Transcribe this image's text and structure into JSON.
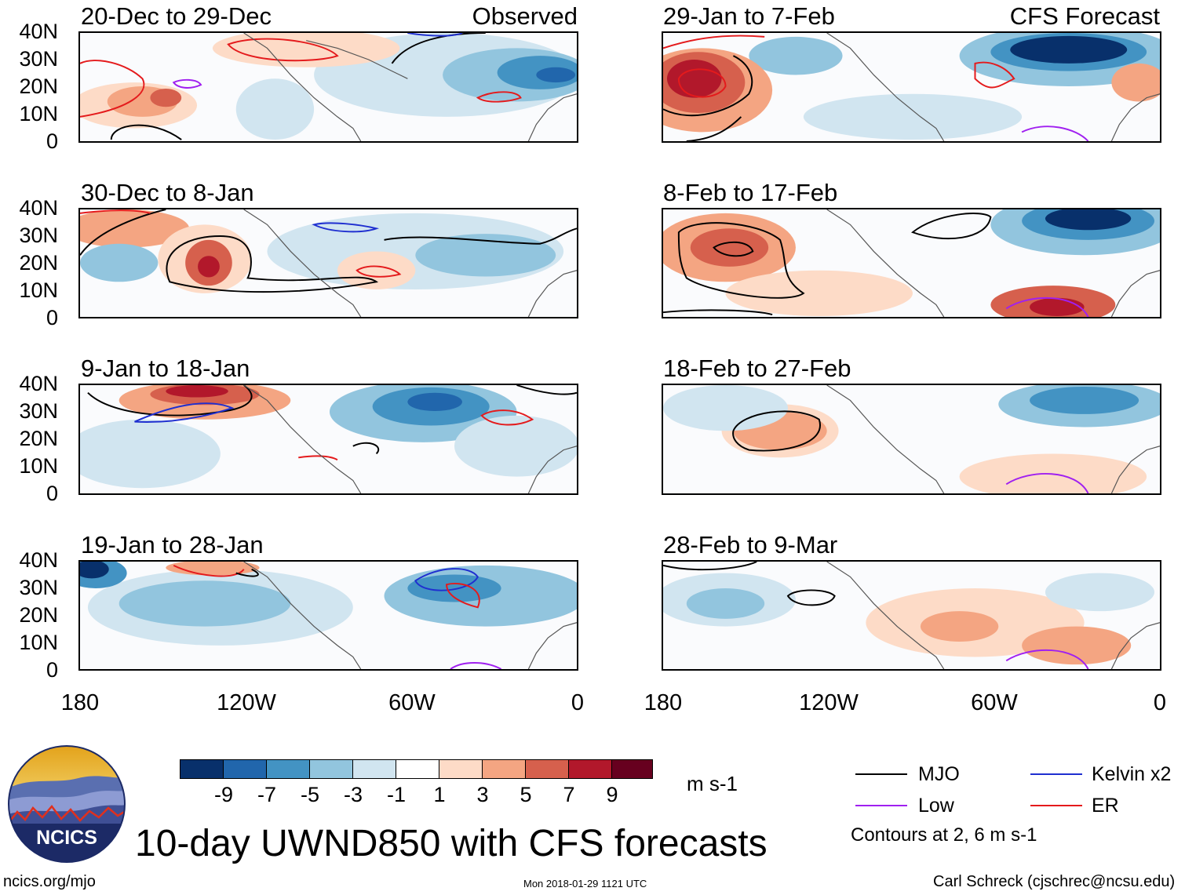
{
  "figure": {
    "title": "10-day UWND850 with CFS forecasts",
    "units": "m s-1",
    "source_link": "ncics.org/mjo",
    "timestamp": "Mon 2018-01-29 1121 UTC",
    "author": "Carl Schreck (cjschrec@ncsu.edu)",
    "logo_text": "NCICS"
  },
  "column_labels": {
    "left": "Observed",
    "right": "CFS Forecast"
  },
  "lat_ticks": [
    "40N",
    "30N",
    "20N",
    "10N",
    "0"
  ],
  "lon_ticks": [
    "180",
    "120W",
    "60W",
    "0"
  ],
  "panels": [
    {
      "period": "20-Dec to 29-Dec",
      "kind": "Observed"
    },
    {
      "period": "30-Dec to 8-Jan",
      "kind": "Observed"
    },
    {
      "period": "9-Jan to 18-Jan",
      "kind": "Observed"
    },
    {
      "period": "19-Jan to 28-Jan",
      "kind": "Observed"
    },
    {
      "period": "29-Jan to 7-Feb",
      "kind": "CFS Forecast"
    },
    {
      "period": "8-Feb to 17-Feb",
      "kind": "CFS Forecast"
    },
    {
      "period": "18-Feb to 27-Feb",
      "kind": "CFS Forecast"
    },
    {
      "period": "28-Feb to 9-Mar",
      "kind": "CFS Forecast"
    }
  ],
  "colorbar": {
    "colors": [
      "#08306b",
      "#2166ac",
      "#4393c3",
      "#92c5de",
      "#d1e5f0",
      "#ffffff",
      "#fddbc7",
      "#f4a582",
      "#d6604d",
      "#b2182b",
      "#67001f"
    ],
    "labels": [
      "-9",
      "-7",
      "-5",
      "-3",
      "-1",
      "1",
      "3",
      "5",
      "7",
      "9"
    ]
  },
  "legend": {
    "items": [
      {
        "label": "MJO",
        "color": "#000000"
      },
      {
        "label": "Kelvin x2",
        "color": "#1f2fd0"
      },
      {
        "label": "Low",
        "color": "#a020f0"
      },
      {
        "label": "ER",
        "color": "#e41a1c"
      }
    ],
    "contour_note": "Contours at 2, 6 m s-1"
  }
}
